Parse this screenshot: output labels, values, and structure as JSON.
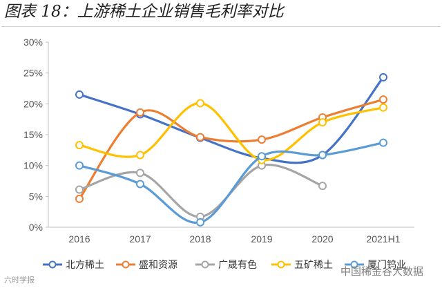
{
  "figure": {
    "title": "图表 18：上游稀土企业销售毛利率对比"
  },
  "watermark": {
    "left": "六时学报",
    "right": "中国稀金谷大数据"
  },
  "chart_data": {
    "type": "line",
    "title": "图表 18：上游稀土企业销售毛利率对比",
    "xlabel": "",
    "ylabel": "",
    "categories": [
      "2016",
      "2017",
      "2018",
      "2019",
      "2020",
      "2021H1"
    ],
    "ylim": [
      0,
      30
    ],
    "yticks": [
      0,
      5,
      10,
      15,
      20,
      25,
      30
    ],
    "ytick_labels": [
      "0%",
      "5%",
      "10%",
      "15%",
      "20%",
      "25%",
      "30%"
    ],
    "grid": false,
    "legend_position": "bottom",
    "smooth": true,
    "series": [
      {
        "name": "北方稀土",
        "color": "#4472C4",
        "values": [
          21.5,
          18.3,
          14.5,
          11.2,
          11.7,
          24.3
        ]
      },
      {
        "name": "盛和资源",
        "color": "#ED7D31",
        "values": [
          4.6,
          18.6,
          14.6,
          14.2,
          17.8,
          20.7
        ]
      },
      {
        "name": "广晟有色",
        "color": "#A5A5A5",
        "values": [
          6.1,
          8.8,
          1.7,
          10.0,
          6.7,
          null
        ]
      },
      {
        "name": "五矿稀土",
        "color": "#FFC000",
        "values": [
          13.3,
          11.7,
          20.1,
          10.9,
          17.0,
          19.4
        ]
      },
      {
        "name": "厦门钨业",
        "color": "#5B9BD5",
        "values": [
          10.0,
          7.0,
          0.8,
          11.5,
          11.7,
          13.7
        ]
      }
    ]
  }
}
